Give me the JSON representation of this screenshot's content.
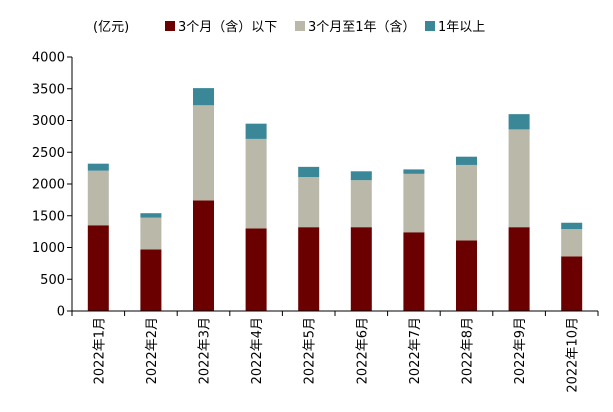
{
  "chart_data": {
    "type": "bar",
    "stacked": true,
    "unit_label": "(亿元)",
    "categories": [
      "2022年1月",
      "2022年2月",
      "2022年3月",
      "2022年4月",
      "2022年5月",
      "2022年6月",
      "2022年7月",
      "2022年8月",
      "2022年9月",
      "2022年10月"
    ],
    "series": [
      {
        "name": "3个月（含）以下",
        "color": "#6b0000",
        "values": [
          1350,
          970,
          1740,
          1300,
          1320,
          1320,
          1240,
          1110,
          1320,
          860
        ]
      },
      {
        "name": "3个月至1年（含）",
        "color": "#b9b8a9",
        "values": [
          860,
          500,
          1500,
          1410,
          790,
          740,
          920,
          1190,
          1540,
          430
        ]
      },
      {
        "name": "1年以上",
        "color": "#3a8797",
        "values": [
          110,
          70,
          270,
          240,
          160,
          140,
          70,
          130,
          240,
          100
        ]
      }
    ],
    "ylim": [
      0,
      4000
    ],
    "yticks": [
      0,
      500,
      1000,
      1500,
      2000,
      2500,
      3000,
      3500,
      4000
    ],
    "legend_position": "top",
    "grid": false
  }
}
